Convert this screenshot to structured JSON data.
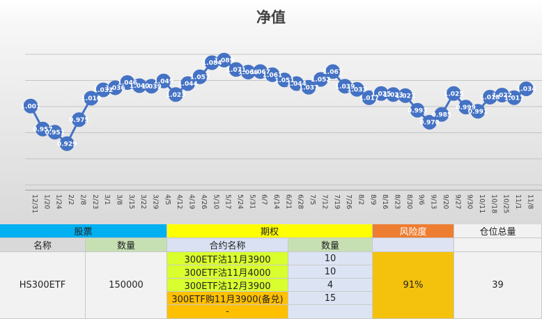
{
  "chart_data": {
    "type": "line",
    "title": "净值",
    "xlabel": "",
    "ylabel": "",
    "ylim": [
      0.84,
      1.1
    ],
    "grid": true,
    "line_color": "#4472c4",
    "x": [
      "12/31",
      "1/20",
      "1/24",
      "2/2",
      "2/8",
      "2/23",
      "3/1",
      "3/8",
      "3/15",
      "3/22",
      "3/29",
      "4/5",
      "4/12",
      "4/19",
      "4/26",
      "5/10",
      "5/17",
      "5/24",
      "5/31",
      "6/7",
      "6/14",
      "6/21",
      "6/28",
      "7/5",
      "7/12",
      "7/19",
      "7/26",
      "8/2",
      "8/9",
      "8/16",
      "8/23",
      "8/30",
      "9/6",
      "9/13",
      "9/20",
      "9/27",
      "9/30",
      "10/11",
      "10/18",
      "10/25",
      "11/1",
      "11/8"
    ],
    "values": [
      1.001,
      0.957,
      0.951,
      0.929,
      0.975,
      1.016,
      1.032,
      1.036,
      1.046,
      1.04,
      1.039,
      1.049,
      1.023,
      1.044,
      1.057,
      1.084,
      1.089,
      1.071,
      1.066,
      1.067,
      1.061,
      1.051,
      1.044,
      1.037,
      1.052,
      1.067,
      1.039,
      1.033,
      1.017,
      1.025,
      1.023,
      1.021,
      0.993,
      0.97,
      0.985,
      1.025,
      0.999,
      0.991,
      1.018,
      1.022,
      1.017,
      1.034
    ],
    "labels": [
      "1.001",
      "0.957",
      "0.951",
      "0.929",
      "0.975",
      "1.016",
      "1.032",
      "1.036",
      "1.046",
      "1.040",
      "1.039",
      "1.049",
      "1.023",
      "1.044",
      "1.057",
      "1.084",
      "1.089",
      "1.071",
      "1.066",
      "1.067",
      "1.061",
      "1.051",
      "1.044",
      "1.037",
      "1.052",
      "1.067",
      "1.039",
      "1.033",
      "1.017",
      "1.025",
      "1.023",
      "1.021",
      "0.993",
      "0.970",
      "0.985",
      "1.025",
      "0.999",
      "0.991",
      "1.018",
      "1.022",
      "1.017",
      "1.034"
    ]
  },
  "table": {
    "sections": {
      "stock": "股票",
      "option": "期权",
      "risk": "风险度",
      "position": "仓位总量"
    },
    "headers": {
      "name": "名称",
      "quantity": "数量",
      "contract_name": "合约名称",
      "option_quantity": "数量"
    },
    "stock": {
      "name": "HS300ETF",
      "quantity": "150000"
    },
    "options": [
      {
        "name": "300ETF沽11月3900",
        "quantity": "10"
      },
      {
        "name": "300ETF沽11月4000",
        "quantity": "10"
      },
      {
        "name": "300ETF沽12月3900",
        "quantity": "4"
      },
      {
        "name": "300ETF购11月3900(备兑)",
        "quantity": "15"
      },
      {
        "name": "-",
        "quantity": ""
      }
    ],
    "risk": "91%",
    "position_total": "39"
  }
}
